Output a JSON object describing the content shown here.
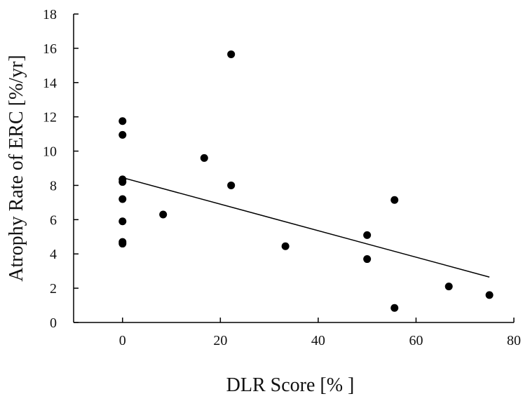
{
  "chart_data": {
    "type": "scatter",
    "xlabel": "DLR Score  [% ]",
    "ylabel": "Atrophy Rate of ERC [%/yr]",
    "xlim": [
      -10,
      80
    ],
    "ylim": [
      0,
      18
    ],
    "x_ticks": [
      0,
      20,
      40,
      60,
      80
    ],
    "y_ticks": [
      0,
      2,
      4,
      6,
      8,
      10,
      12,
      14,
      16,
      18
    ],
    "grid": false,
    "series": [
      {
        "points": [
          {
            "x": 0,
            "y": 11.75
          },
          {
            "x": 0,
            "y": 10.95
          },
          {
            "x": 0,
            "y": 8.35
          },
          {
            "x": 0,
            "y": 8.2
          },
          {
            "x": 0,
            "y": 7.2
          },
          {
            "x": 0,
            "y": 5.9
          },
          {
            "x": 0,
            "y": 4.7
          },
          {
            "x": 0,
            "y": 4.6
          },
          {
            "x": 8.3,
            "y": 6.3
          },
          {
            "x": 16.7,
            "y": 9.6
          },
          {
            "x": 22.2,
            "y": 15.65
          },
          {
            "x": 22.2,
            "y": 8.0
          },
          {
            "x": 33.3,
            "y": 4.45
          },
          {
            "x": 50,
            "y": 5.1
          },
          {
            "x": 50,
            "y": 3.7
          },
          {
            "x": 55.6,
            "y": 7.15
          },
          {
            "x": 55.6,
            "y": 0.85
          },
          {
            "x": 66.7,
            "y": 2.1
          },
          {
            "x": 75,
            "y": 1.6
          }
        ]
      }
    ],
    "trendline": {
      "x": [
        0,
        75
      ],
      "y": [
        8.45,
        2.65
      ]
    },
    "colors": {
      "points": "#000000",
      "line": "#000000",
      "axis": "#000000"
    }
  }
}
